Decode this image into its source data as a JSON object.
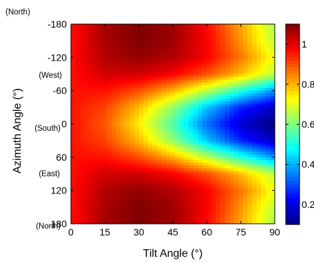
{
  "chart_data": {
    "type": "heatmap",
    "xlabel": "Tilt Angle (°)",
    "ylabel": "Azimuth Angle (°)",
    "x_ticks": [
      0,
      15,
      30,
      45,
      60,
      75,
      90
    ],
    "y_ticks": [
      -180,
      -120,
      -60,
      0,
      60,
      120,
      180
    ],
    "xlim": [
      0,
      90
    ],
    "ylim": [
      -180,
      180
    ],
    "y_annotations": [
      {
        "value": -180,
        "text": "(North)"
      },
      {
        "value": -90,
        "text": "(West)"
      },
      {
        "value": 0,
        "text": "(South)"
      },
      {
        "value": 90,
        "text": "(East)"
      },
      {
        "value": 180,
        "text": "(North)"
      }
    ],
    "colorbar": {
      "min": 0.1,
      "max": 1.1,
      "ticks": [
        0.2,
        0.4,
        0.6,
        0.8,
        1
      ],
      "tick_labels": [
        "0.2",
        "0.4",
        "0.6",
        "0.8",
        "1"
      ],
      "colormap": "jet"
    },
    "x": [
      0,
      15,
      30,
      45,
      60,
      75,
      90
    ],
    "y": [
      -180,
      -150,
      -120,
      -90,
      -60,
      -30,
      0,
      30,
      60,
      90,
      120,
      150,
      180
    ],
    "z": [
      [
        0.96,
        1.06,
        1.1,
        1.07,
        0.97,
        0.81,
        0.64
      ],
      [
        0.96,
        1.06,
        1.1,
        1.07,
        0.98,
        0.83,
        0.66
      ],
      [
        0.96,
        1.05,
        1.08,
        1.05,
        0.98,
        0.86,
        0.71
      ],
      [
        0.96,
        1.02,
        1.02,
        0.98,
        0.9,
        0.79,
        0.66
      ],
      [
        0.96,
        0.96,
        0.9,
        0.8,
        0.66,
        0.51,
        0.37
      ],
      [
        0.96,
        0.91,
        0.79,
        0.62,
        0.42,
        0.26,
        0.16
      ],
      [
        0.96,
        0.89,
        0.74,
        0.55,
        0.33,
        0.18,
        0.1
      ],
      [
        0.96,
        0.91,
        0.79,
        0.62,
        0.42,
        0.26,
        0.16
      ],
      [
        0.96,
        0.96,
        0.9,
        0.8,
        0.66,
        0.51,
        0.37
      ],
      [
        0.96,
        1.02,
        1.02,
        0.98,
        0.9,
        0.79,
        0.66
      ],
      [
        0.96,
        1.05,
        1.08,
        1.05,
        0.98,
        0.86,
        0.71
      ],
      [
        0.96,
        1.06,
        1.1,
        1.07,
        0.98,
        0.83,
        0.66
      ],
      [
        0.96,
        1.06,
        1.1,
        1.07,
        0.97,
        0.81,
        0.64
      ]
    ]
  }
}
